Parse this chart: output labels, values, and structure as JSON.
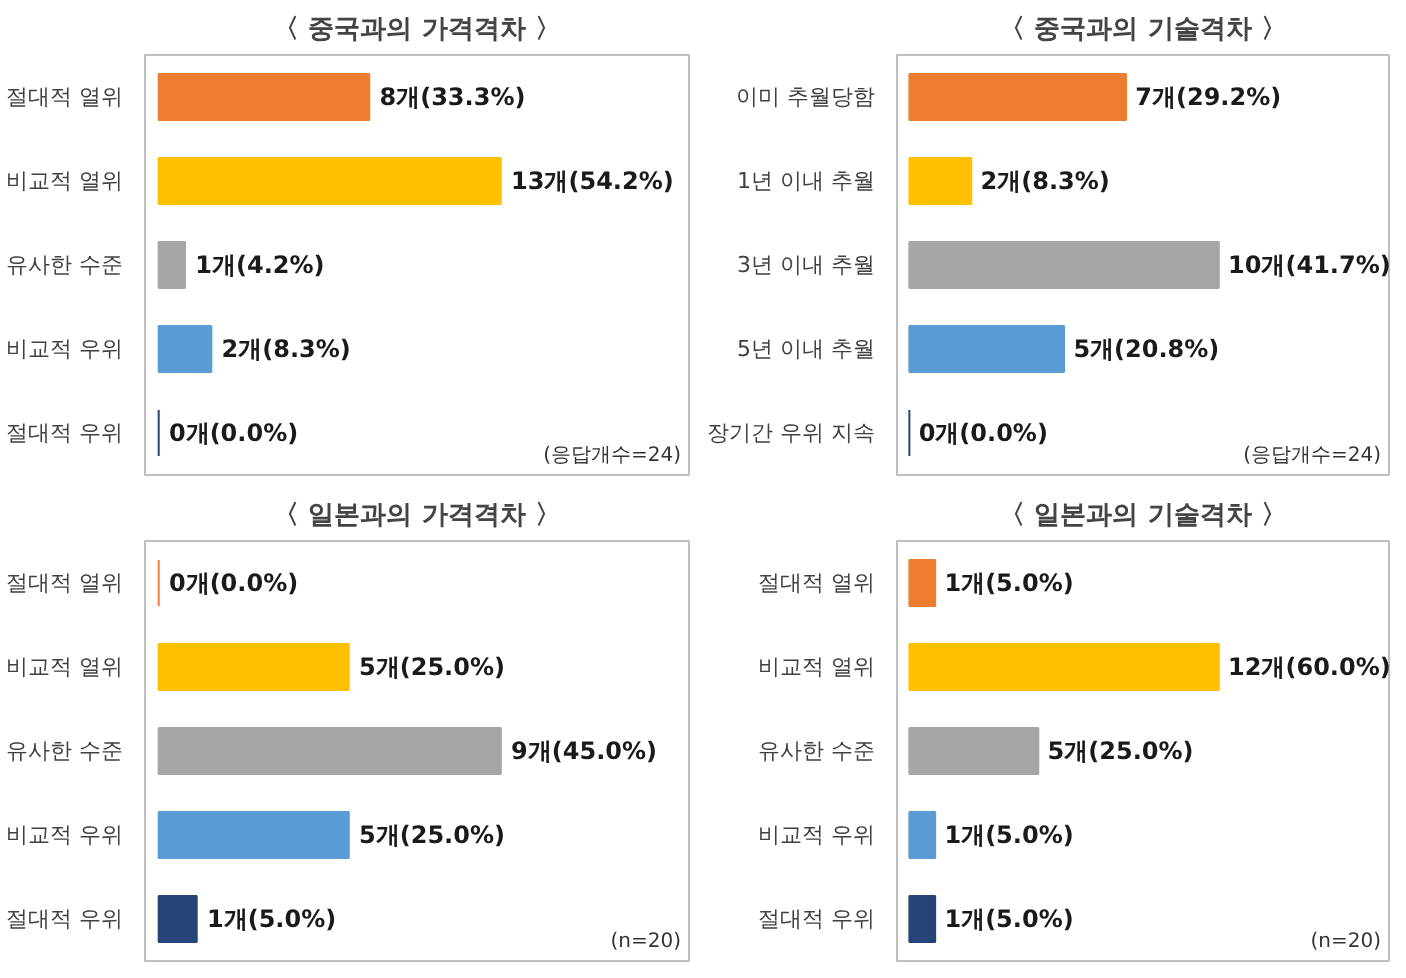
{
  "chart_data": [
    {
      "type": "bar",
      "orientation": "horizontal",
      "title": "〈 중국과의 가격격차 〉",
      "categories": [
        "절대적 열위",
        "비교적 열위",
        "유사한 수준",
        "비교적 우위",
        "절대적 우위"
      ],
      "values": [
        8,
        13,
        1,
        2,
        0
      ],
      "colors": [
        "#ed7d31",
        "#ffc000",
        "#a5a5a5",
        "#5b9bd5",
        "#264478"
      ],
      "value_labels": [
        "8개(33.3%)",
        "13개(54.2%)",
        "1개(4.2%)",
        "2개(8.3%)",
        "0개(0.0%)"
      ],
      "annotations": [
        "(응답개수=24)"
      ],
      "tick_labels": "y",
      "grid": false,
      "legend": false
    },
    {
      "type": "bar",
      "orientation": "horizontal",
      "title": "〈 중국과의 기술격차 〉",
      "categories": [
        "이미 추월당함",
        "1년 이내 추월",
        "3년 이내 추월",
        "5년 이내 추월",
        "장기간 우위 지속"
      ],
      "values": [
        7,
        2,
        10,
        5,
        0
      ],
      "colors": [
        "#ed7d31",
        "#ffc000",
        "#a5a5a5",
        "#5b9bd5",
        "#264478"
      ],
      "value_labels": [
        "7개(29.2%)",
        "2개(8.3%)",
        "10개(41.7%)",
        "5개(20.8%)",
        "0개(0.0%)"
      ],
      "annotations": [
        "(응답개수=24)"
      ],
      "tick_labels": "y",
      "grid": false,
      "legend": false
    },
    {
      "type": "bar",
      "orientation": "horizontal",
      "title": "〈 일본과의 가격격차 〉",
      "categories": [
        "절대적 열위",
        "비교적 열위",
        "유사한 수준",
        "비교적 우위",
        "절대적 우위"
      ],
      "values": [
        0,
        5,
        9,
        5,
        1
      ],
      "colors": [
        "#ed7d31",
        "#ffc000",
        "#a5a5a5",
        "#5b9bd5",
        "#264478"
      ],
      "value_labels": [
        "0개(0.0%)",
        "5개(25.0%)",
        "9개(45.0%)",
        "5개(25.0%)",
        "1개(5.0%)"
      ],
      "annotations": [
        "(n=20)"
      ],
      "tick_labels": "y",
      "grid": false,
      "legend": false
    },
    {
      "type": "bar",
      "orientation": "horizontal",
      "title": "〈 일본과의 기술격차 〉",
      "categories": [
        "절대적 열위",
        "비교적 열위",
        "유사한 수준",
        "비교적 우위",
        "절대적 우위"
      ],
      "values": [
        1,
        12,
        5,
        1,
        1
      ],
      "colors": [
        "#ed7d31",
        "#ffc000",
        "#a5a5a5",
        "#5b9bd5",
        "#264478"
      ],
      "value_labels": [
        "1개(5.0%)",
        "12개(60.0%)",
        "5개(25.0%)",
        "1개(5.0%)",
        "1개(5.0%)"
      ],
      "annotations": [
        "(n=20)"
      ],
      "tick_labels": "y",
      "grid": false,
      "legend": false
    }
  ]
}
